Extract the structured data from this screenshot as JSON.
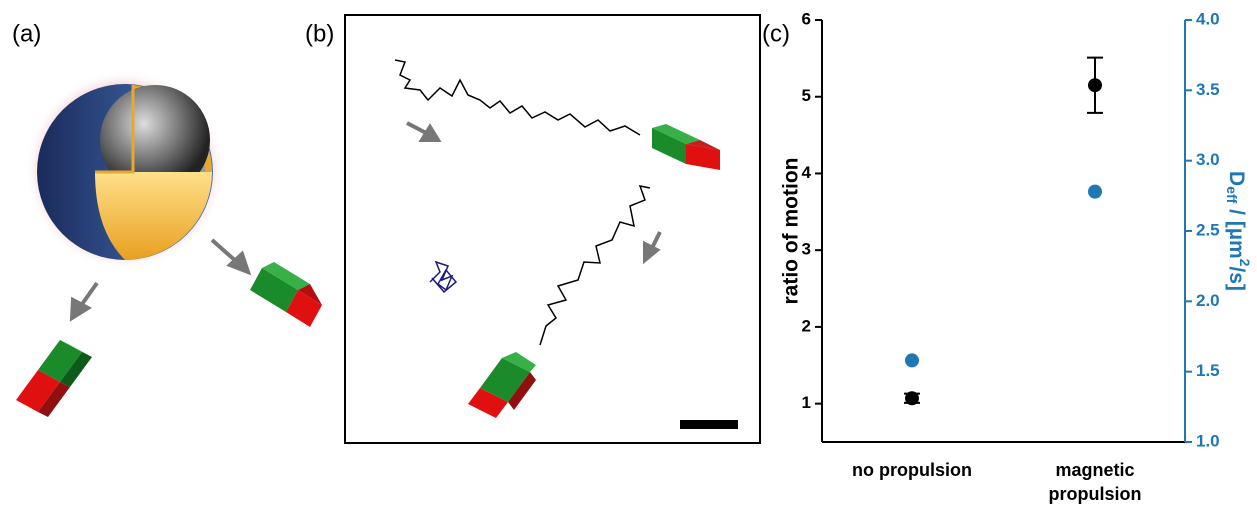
{
  "panels": {
    "a": {
      "label": "(a)"
    },
    "b": {
      "label": "(b)"
    }
  },
  "chart_data": {
    "type": "scatter",
    "panel_label": "(c)",
    "categories": [
      "no propulsion",
      "magnetic propulsion"
    ],
    "ylabel": "ratio of motion",
    "y2label": [
      "D",
      "eff",
      " / [µm",
      "2",
      "/s]"
    ],
    "series": [
      {
        "color": "#000000",
        "values": [
          1.07,
          5.15
        ],
        "errors": [
          0.06,
          0.36
        ]
      },
      {
        "color": "#1f77b4",
        "values": [
          1.58,
          2.78
        ],
        "axis": "y2"
      }
    ],
    "ylim": [
      0.5,
      6
    ],
    "yticks": [
      1,
      2,
      3,
      4,
      5,
      6
    ],
    "y2lim": [
      1.0,
      4.0
    ],
    "y2ticks": [
      {
        "value": 1.0,
        "label": "1.0"
      },
      {
        "value": 1.5,
        "label": "1.5"
      },
      {
        "value": 2.0,
        "label": "2.0"
      },
      {
        "value": 2.5,
        "label": "2.5"
      },
      {
        "value": 3.0,
        "label": "3.0"
      },
      {
        "value": 3.5,
        "label": "3.5"
      },
      {
        "value": 4.0,
        "label": "4.0"
      }
    ]
  }
}
